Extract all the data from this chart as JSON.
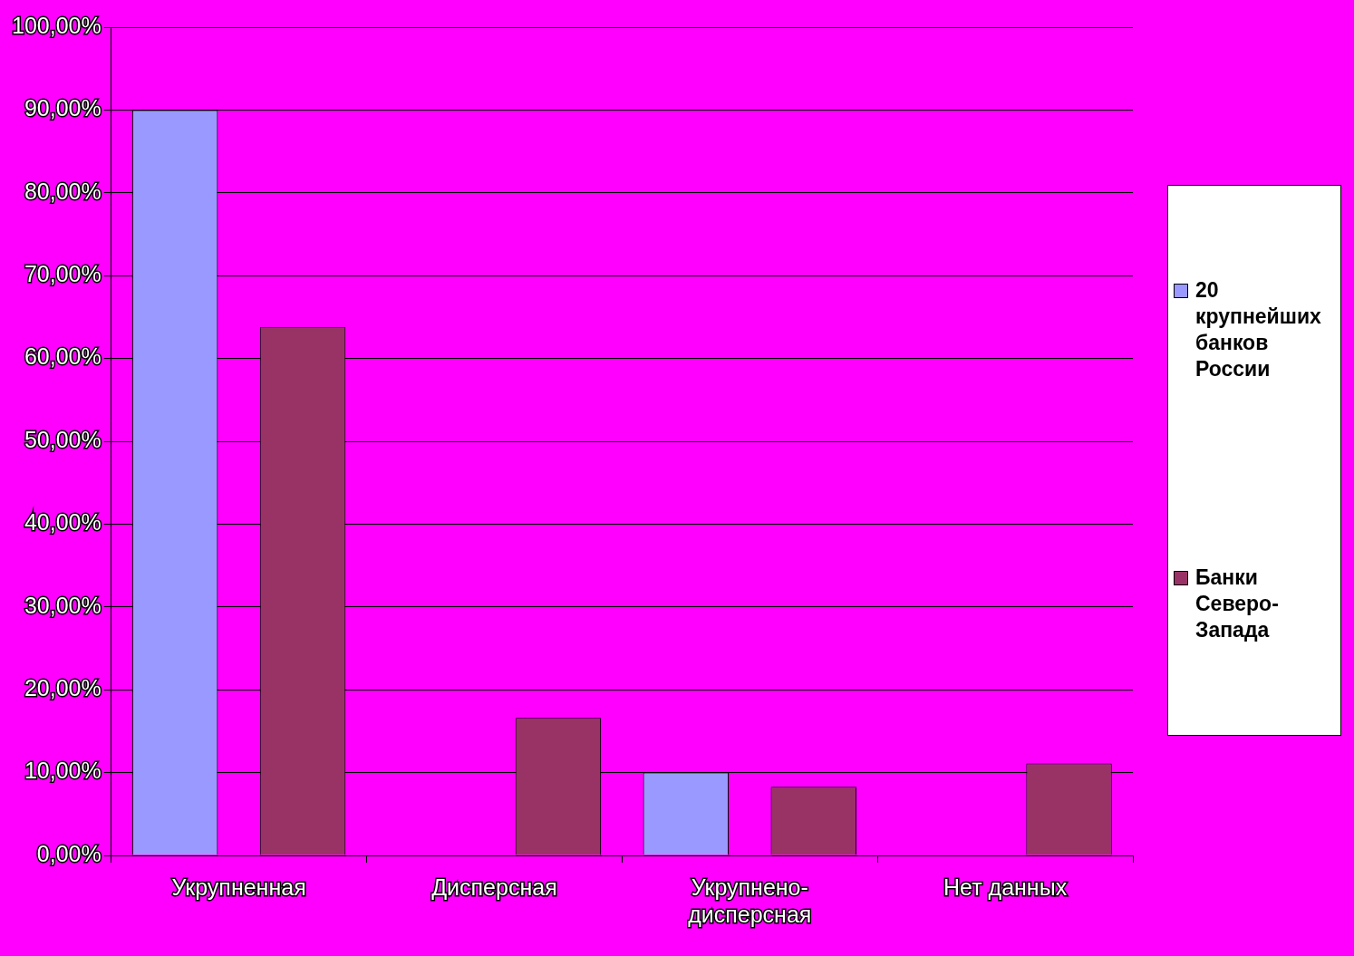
{
  "chart_data": {
    "type": "bar",
    "categories": [
      "Укрупненная",
      "Дисперсная",
      "Укрупнено-дисперсная",
      "Нет данных"
    ],
    "series": [
      {
        "name": "20 крупнейших банков России",
        "color": "#9999ff",
        "values": [
          90,
          0,
          10,
          0
        ]
      },
      {
        "name": "Банки Северо-Запада",
        "color": "#993366",
        "values": [
          63.8,
          16.6,
          8.3,
          11.1
        ]
      }
    ],
    "ylim": [
      0,
      100
    ],
    "yticks": [
      {
        "value": 0,
        "label": "0,00%"
      },
      {
        "value": 10,
        "label": "10,00%"
      },
      {
        "value": 20,
        "label": "20,00%"
      },
      {
        "value": 30,
        "label": "30,00%"
      },
      {
        "value": 40,
        "label": "40,00%"
      },
      {
        "value": 50,
        "label": "50,00%"
      },
      {
        "value": 60,
        "label": "60,00%"
      },
      {
        "value": 70,
        "label": "70,00%"
      },
      {
        "value": 80,
        "label": "80,00%"
      },
      {
        "value": 90,
        "label": "90,00%"
      },
      {
        "value": 100,
        "label": "100,00%"
      }
    ],
    "grid": "y",
    "legend": "right"
  }
}
